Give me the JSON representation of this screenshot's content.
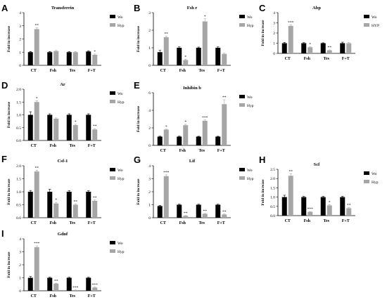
{
  "colors": {
    "wo": "#000000",
    "hyp": "#a6a6a6"
  },
  "chart_data": [
    {
      "type": "bar",
      "letter": "A",
      "title": "Transferrin",
      "ylabel": "Fold in increase",
      "categories": [
        "CT",
        "Fsh",
        "Tes",
        "F+T"
      ],
      "ylim": [
        0,
        4
      ],
      "yticks": [
        0,
        1,
        2,
        3,
        4
      ],
      "legend": [
        "Wo",
        "Hyp"
      ],
      "series": [
        {
          "name": "Wo",
          "values": [
            1.0,
            1.0,
            1.0,
            1.05
          ],
          "errors": [
            0.05,
            0.05,
            0.04,
            0.05
          ]
        },
        {
          "name": "Hyp",
          "values": [
            2.75,
            1.08,
            1.0,
            0.8
          ],
          "errors": [
            0.1,
            0.05,
            0.05,
            0.06
          ]
        }
      ],
      "sig": [
        "",
        "**",
        "",
        "",
        "",
        "",
        "",
        "*"
      ]
    },
    {
      "type": "bar",
      "letter": "B",
      "title": "Fsh r",
      "ylabel": "Fold in increase",
      "categories": [
        "CT",
        "Fsh",
        "Tes",
        "F+T"
      ],
      "ylim": [
        0,
        3
      ],
      "yticks": [
        0,
        1,
        2,
        3
      ],
      "legend": [
        "Wo",
        "Hyp"
      ],
      "series": [
        {
          "name": "Wo",
          "values": [
            0.75,
            1.0,
            1.0,
            1.0
          ],
          "errors": [
            0.1,
            0.05,
            0.04,
            0.05
          ]
        },
        {
          "name": "Hyp",
          "values": [
            1.6,
            0.3,
            2.5,
            0.65
          ],
          "errors": [
            0.06,
            0.05,
            0.15,
            0.04
          ]
        }
      ],
      "sig": [
        "",
        "**",
        "",
        "*",
        "",
        "*",
        "",
        ""
      ]
    },
    {
      "type": "bar",
      "letter": "C",
      "title": "Abp",
      "ylabel": "Fold in increase",
      "categories": [
        "CT",
        "Fsh",
        "Tes",
        "F+T"
      ],
      "ylim": [
        0,
        4
      ],
      "yticks": [
        0,
        1,
        2,
        3,
        4
      ],
      "legend": [
        "Wo",
        "HYP"
      ],
      "series": [
        {
          "name": "Wo",
          "values": [
            1.0,
            1.0,
            1.0,
            1.0
          ],
          "errors": [
            0.08,
            0.05,
            0.04,
            0.1
          ]
        },
        {
          "name": "HYP",
          "values": [
            2.7,
            0.6,
            0.3,
            1.0
          ],
          "errors": [
            0.1,
            0.05,
            0.04,
            0.06
          ]
        }
      ],
      "sig": [
        "",
        "***",
        "",
        "*",
        "",
        "**",
        "",
        ""
      ]
    },
    {
      "type": "bar",
      "letter": "D",
      "title": "Ar",
      "ylabel": "Fold in increase",
      "categories": [
        "CT",
        "Fsh",
        "Tes",
        "F+T"
      ],
      "ylim": [
        0,
        2.0
      ],
      "yticks": [
        0,
        0.5,
        1.0,
        1.5,
        2.0
      ],
      "legend": [
        "Wo",
        "Hyp"
      ],
      "series": [
        {
          "name": "Wo",
          "values": [
            1.0,
            1.0,
            1.0,
            1.0
          ],
          "errors": [
            0.12,
            0.04,
            0.04,
            0.04
          ]
        },
        {
          "name": "Hyp",
          "values": [
            1.5,
            0.85,
            0.6,
            0.43
          ],
          "errors": [
            0.05,
            0.03,
            0.03,
            0.03
          ]
        }
      ],
      "sig": [
        "",
        "*",
        "",
        "",
        "",
        "*",
        "",
        "**"
      ]
    },
    {
      "type": "bar",
      "letter": "E",
      "title": "Inhibin b",
      "ylabel": "Fold in increase",
      "categories": [
        "CT",
        "Fsh",
        "Tes",
        "F+T"
      ],
      "ylim": [
        0,
        6
      ],
      "yticks": [
        0,
        2,
        4,
        6
      ],
      "legend": [
        "Wo",
        "Hyp"
      ],
      "series": [
        {
          "name": "Wo",
          "values": [
            1.0,
            1.0,
            1.0,
            1.0
          ],
          "errors": [
            0.05,
            0.05,
            0.04,
            0.04
          ]
        },
        {
          "name": "Hyp",
          "values": [
            1.8,
            2.3,
            2.8,
            4.7
          ],
          "errors": [
            0.05,
            0.1,
            0.1,
            0.5
          ]
        }
      ],
      "sig": [
        "",
        "*",
        "",
        "*",
        "",
        "***",
        "",
        "**"
      ]
    },
    {
      "type": "bar",
      "letter": "F",
      "title": "Csf-1",
      "ylabel": "Fold in increase",
      "categories": [
        "CT",
        "Fsh",
        "Tes",
        "F+T"
      ],
      "ylim": [
        0,
        2.0
      ],
      "yticks": [
        0,
        0.5,
        1.0,
        1.5,
        2.0
      ],
      "legend": [
        "Wo",
        "Hyp"
      ],
      "series": [
        {
          "name": "Wo",
          "values": [
            1.0,
            1.0,
            1.0,
            1.0
          ],
          "errors": [
            0.05,
            0.1,
            0.04,
            0.04
          ]
        },
        {
          "name": "Hyp",
          "values": [
            1.78,
            0.55,
            0.5,
            0.65
          ],
          "errors": [
            0.05,
            0.04,
            0.03,
            0.03
          ]
        }
      ],
      "sig": [
        "",
        "**",
        "",
        "*",
        "",
        "**",
        "",
        "**"
      ]
    },
    {
      "type": "bar",
      "letter": "G",
      "title": "Lif",
      "ylabel": "Fold in increase",
      "categories": [
        "CT",
        "Fsh",
        "Tes",
        "F+T"
      ],
      "ylim": [
        0,
        4
      ],
      "yticks": [
        0,
        1,
        2,
        3,
        4
      ],
      "legend": [
        "Wo",
        "Hyp"
      ],
      "series": [
        {
          "name": "Wo",
          "values": [
            0.9,
            1.0,
            1.0,
            1.0
          ],
          "errors": [
            0.05,
            0.04,
            0.04,
            0.04
          ]
        },
        {
          "name": "Hyp",
          "values": [
            3.2,
            0.15,
            0.3,
            0.25
          ],
          "errors": [
            0.1,
            0.02,
            0.03,
            0.03
          ]
        }
      ],
      "sig": [
        "",
        "***",
        "",
        "**",
        "",
        "**",
        "",
        "**"
      ]
    },
    {
      "type": "bar",
      "letter": "H",
      "title": "Scf",
      "ylabel": "Fold in increase",
      "categories": [
        "CT",
        "Fsh",
        "Tes",
        "F+T"
      ],
      "ylim": [
        0,
        2.5
      ],
      "yticks": [
        0,
        0.5,
        1.0,
        1.5,
        2.0,
        2.5
      ],
      "legend": [
        "Wo",
        "Hyp"
      ],
      "series": [
        {
          "name": "Wo",
          "values": [
            1.0,
            1.0,
            1.0,
            1.0
          ],
          "errors": [
            0.1,
            0.04,
            0.04,
            0.04
          ]
        },
        {
          "name": "Hyp",
          "values": [
            2.15,
            0.2,
            0.55,
            0.4
          ],
          "errors": [
            0.1,
            0.02,
            0.04,
            0.03
          ]
        }
      ],
      "sig": [
        "",
        "**",
        "",
        "***",
        "",
        "*",
        "",
        "**"
      ]
    },
    {
      "type": "bar",
      "letter": "I",
      "title": "Gdnf",
      "ylabel": "Fold in increase",
      "categories": [
        "CT",
        "Fsh",
        "Tes",
        "F+T"
      ],
      "ylim": [
        0,
        4
      ],
      "yticks": [
        0,
        1,
        2,
        3,
        4
      ],
      "legend": [
        "Wo",
        "Hyp"
      ],
      "series": [
        {
          "name": "Wo",
          "values": [
            1.0,
            1.0,
            1.0,
            1.0
          ],
          "errors": [
            0.1,
            0.04,
            0.04,
            0.04
          ]
        },
        {
          "name": "Hyp",
          "values": [
            3.35,
            0.55,
            0.05,
            0.25
          ],
          "errors": [
            0.1,
            0.03,
            0.01,
            0.03
          ]
        }
      ],
      "sig": [
        "",
        "***",
        "",
        "**",
        "",
        "***",
        "",
        "***"
      ]
    }
  ]
}
